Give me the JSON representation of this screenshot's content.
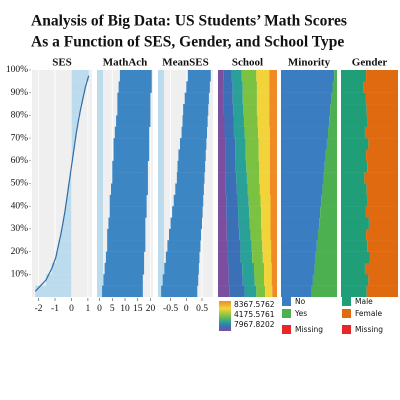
{
  "chart_data": {
    "type": "table-lens",
    "title": [
      "Analysis of Big Data: US Students’ Math Scores",
      "As a Function of SES, Gender, and School Type"
    ],
    "ylim": [
      0,
      100
    ],
    "yticks": [
      {
        "value": 10,
        "label": "10%"
      },
      {
        "value": 20,
        "label": "20%"
      },
      {
        "value": 30,
        "label": "30%"
      },
      {
        "value": 40,
        "label": "40%"
      },
      {
        "value": 50,
        "label": "50%"
      },
      {
        "value": 60,
        "label": "60%"
      },
      {
        "value": 70,
        "label": "70%"
      },
      {
        "value": 80,
        "label": "80%"
      },
      {
        "value": 90,
        "label": "90%"
      },
      {
        "value": 100,
        "label": "100%"
      }
    ],
    "bins": [
      0,
      5,
      10,
      15,
      20,
      25,
      30,
      35,
      40,
      45,
      50,
      55,
      60,
      65,
      70,
      75,
      80,
      85,
      90,
      95,
      100
    ],
    "panels": [
      {
        "type": "curve",
        "header": "SES",
        "xlim": [
          -2.4,
          1.25
        ],
        "xticks": [
          -2,
          -1,
          0,
          1
        ],
        "color": "#2f6aa3",
        "fill": "#bcdcee",
        "values": [
          -2.2,
          -1.55,
          -1.2,
          -0.95,
          -0.8,
          -0.65,
          -0.52,
          -0.4,
          -0.3,
          -0.2,
          -0.1,
          0.0,
          0.1,
          0.2,
          0.3,
          0.42,
          0.55,
          0.7,
          0.85,
          1.05
        ]
      },
      {
        "type": "range",
        "header": "MathAch",
        "xlim": [
          -1,
          21
        ],
        "xticks": [
          0,
          5,
          10,
          15,
          20
        ],
        "color": "#3d86c4",
        "low": [
          1,
          1.5,
          2,
          2.5,
          3,
          3,
          3.5,
          4,
          4,
          4.5,
          5,
          5,
          5.5,
          5.5,
          6,
          6.5,
          7,
          7,
          7.5,
          8
        ],
        "high": [
          17,
          17,
          17.5,
          17.5,
          18,
          18,
          18,
          18.5,
          18.5,
          19,
          19,
          19,
          19.5,
          19.5,
          19.5,
          20,
          20,
          20,
          20.5,
          20.5
        ]
      },
      {
        "type": "range",
        "header": "MeanSES",
        "xlim": [
          -0.9,
          0.85
        ],
        "xticks": [
          -0.5,
          0,
          0.5
        ],
        "color": "#3d86c4",
        "low": [
          -0.8,
          -0.75,
          -0.7,
          -0.65,
          -0.6,
          -0.55,
          -0.5,
          -0.45,
          -0.4,
          -0.35,
          -0.3,
          -0.28,
          -0.25,
          -0.2,
          -0.15,
          -0.12,
          -0.1,
          -0.05,
          0,
          0.05
        ],
        "high": [
          0.35,
          0.38,
          0.4,
          0.42,
          0.45,
          0.47,
          0.5,
          0.52,
          0.54,
          0.56,
          0.58,
          0.6,
          0.62,
          0.64,
          0.66,
          0.68,
          0.7,
          0.72,
          0.75,
          0.78
        ]
      },
      {
        "type": "stack",
        "header": "School",
        "xlim": [
          0,
          100
        ],
        "legend_labels": [
          "8367.5762",
          "4175.5761",
          "7967.8202"
        ],
        "series": [
          {
            "color": "#7b4fa0",
            "values": [
              20,
              18,
              18,
              16,
              16,
              15,
              15,
              14,
              14,
              13,
              13,
              12,
              12,
              12,
              11,
              11,
              10,
              10,
              10,
              9
            ]
          },
          {
            "color": "#3b6fb6",
            "values": [
              25,
              24,
              23,
              22,
              22,
              21,
              20,
              20,
              19,
              19,
              18,
              18,
              17,
              17,
              16,
              16,
              16,
              15,
              15,
              14
            ]
          },
          {
            "color": "#2aa198",
            "values": [
              20,
              20,
              20,
              20,
              19,
              19,
              19,
              19,
              19,
              18,
              18,
              18,
              18,
              18,
              18,
              17,
              17,
              17,
              17,
              17
            ]
          },
          {
            "color": "#7cc242",
            "values": [
              15,
              16,
              17,
              18,
              18,
              19,
              19,
              20,
              20,
              21,
              21,
              22,
              22,
              22,
              23,
              23,
              23,
              24,
              24,
              25
            ]
          },
          {
            "color": "#f2d43a",
            "values": [
              12,
              13,
              13,
              14,
              15,
              15,
              16,
              16,
              17,
              17,
              18,
              18,
              19,
              19,
              20,
              20,
              21,
              21,
              21,
              22
            ]
          },
          {
            "color": "#f08a24",
            "values": [
              8,
              9,
              9,
              10,
              10,
              11,
              11,
              11,
              11,
              12,
              12,
              12,
              12,
              12,
              12,
              13,
              13,
              13,
              13,
              13
            ]
          }
        ]
      },
      {
        "type": "stack",
        "header": "Minority",
        "xlim": [
          0,
          100
        ],
        "series": [
          {
            "name": "No",
            "color": "#3a7dc0",
            "values": [
              55,
              57,
              60,
              62,
              64,
              66,
              68,
              70,
              72,
              74,
              76,
              78,
              80,
              82,
              84,
              86,
              88,
              90,
              92,
              95
            ]
          },
          {
            "name": "Yes",
            "color": "#4caf50",
            "values": [
              45,
              43,
              40,
              38,
              36,
              34,
              32,
              30,
              28,
              26,
              24,
              22,
              20,
              18,
              16,
              14,
              12,
              10,
              8,
              5
            ]
          },
          {
            "name": "Missing",
            "color": "#e8262a"
          }
        ]
      },
      {
        "type": "stack",
        "header": "Gender",
        "xlim": [
          0,
          100
        ],
        "series": [
          {
            "name": "Male",
            "color": "#1f9e78",
            "values": [
              45,
              48,
              42,
              50,
              46,
              44,
              49,
              43,
              47,
              45,
              41,
              46,
              44,
              48,
              42,
              47,
              45,
              43,
              40,
              44
            ]
          },
          {
            "name": "Female",
            "color": "#e06a10",
            "values": [
              55,
              52,
              58,
              50,
              54,
              56,
              51,
              57,
              53,
              55,
              59,
              54,
              56,
              52,
              58,
              53,
              55,
              57,
              60,
              56
            ]
          },
          {
            "name": "Missing",
            "color": "#e8262a"
          }
        ]
      }
    ]
  }
}
